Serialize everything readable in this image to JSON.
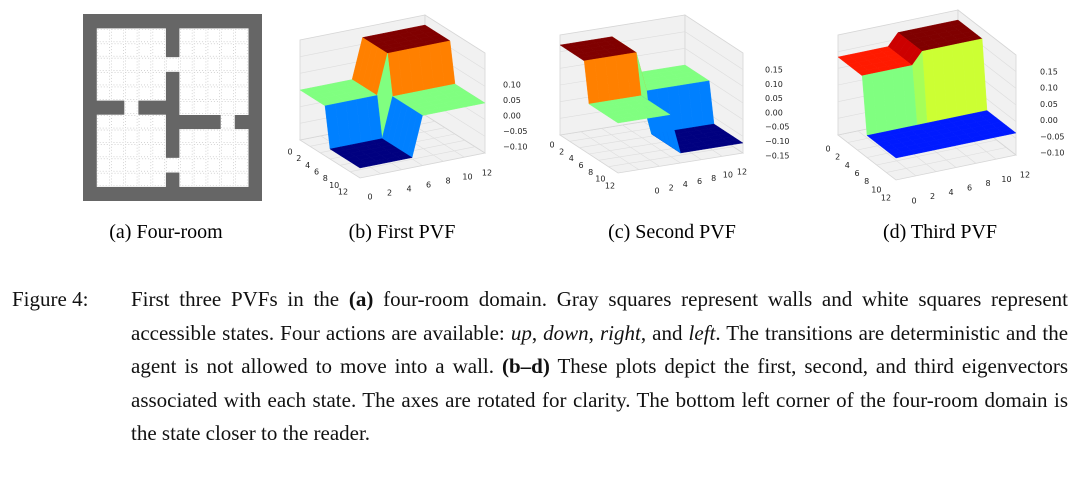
{
  "panels": [
    {
      "subcaption": "(a) Four-room"
    },
    {
      "subcaption": "(b) First PVF",
      "row_ticks": [
        "0",
        "2",
        "4",
        "6",
        "8",
        "10",
        "12"
      ],
      "col_ticks": [
        "0",
        "2",
        "4",
        "6",
        "8",
        "10",
        "12"
      ],
      "zticks": [
        "0.10",
        "0.05",
        "0.00",
        "−0.05",
        "−0.10"
      ]
    },
    {
      "subcaption": "(c) Second PVF",
      "row_ticks": [
        "0",
        "2",
        "4",
        "6",
        "8",
        "10",
        "12"
      ],
      "col_ticks": [
        "0",
        "2",
        "4",
        "6",
        "8",
        "10",
        "12"
      ],
      "zticks": [
        "0.15",
        "0.10",
        "0.05",
        "0.00",
        "−0.05",
        "−0.10",
        "−0.15"
      ]
    },
    {
      "subcaption": "(d) Third PVF",
      "row_ticks": [
        "0",
        "2",
        "4",
        "6",
        "8",
        "10",
        "12"
      ],
      "col_ticks": [
        "0",
        "2",
        "4",
        "6",
        "8",
        "10",
        "12"
      ],
      "zticks": [
        "0.15",
        "0.10",
        "0.05",
        "0.00",
        "−0.05",
        "−0.10"
      ]
    }
  ],
  "caption": {
    "label": "Figure 4:",
    "segments": [
      "First three PVFs in the ",
      "(a)",
      " four-room domain. Gray squares represent walls and white squares represent accessible states. Four actions are available: ",
      "up",
      ", ",
      "down",
      ", ",
      "right",
      ", and ",
      "left",
      ". The transitions are deterministic and the agent is not allowed to move into a wall. ",
      "(b–d)",
      " These plots depict the first, second, and third eigenvectors associated with each state. The axes are rotated for clarity. The bottom left corner of the four-room domain is the state closer to the reader."
    ]
  }
}
